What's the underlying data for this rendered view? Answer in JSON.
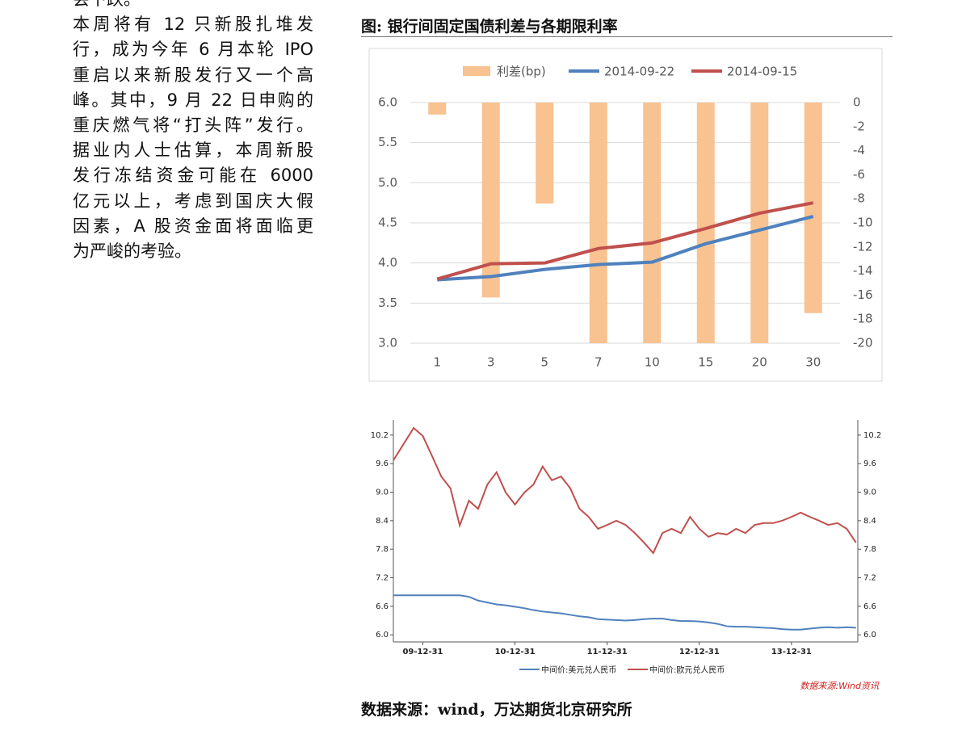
{
  "text": {
    "lines": [
      "会下跌。",
      "本周将有 12 只新股扎堆发",
      "行，成为今年 6 月本轮 IPO",
      "重启以来新股发行又一个高",
      "峰。其中，9 月 22 日申购的",
      "重庆燃气将“打头阵”发行。",
      "据业内人士估算，本周新股",
      "发行冻结资金可能在 6000",
      "亿元以上，考虑到国庆大假",
      "因素，A 股资金面将面临更",
      "为严峻的考验。"
    ]
  },
  "chart_data": [
    {
      "type": "bar-line",
      "title": "图: 银行间固定国债利差与各期限利率",
      "categories": [
        "1",
        "3",
        "5",
        "7",
        "10",
        "15",
        "20",
        "30"
      ],
      "series": [
        {
          "name": "利差(bp)",
          "color": "#f8c291",
          "axis": "y2",
          "kind": "bar",
          "values": [
            -1.0,
            -16.2,
            -8.4,
            -20,
            -20,
            -20,
            -20,
            -17.5
          ]
        },
        {
          "name": "2014-09-22",
          "color": "#4f81bd",
          "kind": "line",
          "values": [
            3.79,
            3.83,
            3.92,
            3.98,
            4.01,
            4.24,
            4.41,
            4.58
          ]
        },
        {
          "name": "2014-09-15",
          "color": "#c0504d",
          "kind": "line",
          "values": [
            3.8,
            3.99,
            4.0,
            4.18,
            4.25,
            4.43,
            4.62,
            4.75
          ]
        }
      ],
      "ylim": [
        3,
        6
      ],
      "yticks": [
        {
          "value": 3,
          "label": "3.0"
        },
        3.5,
        {
          "value": 4,
          "label": "4.0"
        },
        4.5,
        {
          "value": 5,
          "label": "5.0"
        },
        5.5,
        {
          "value": 6,
          "label": "6.0"
        }
      ],
      "y2lim": [
        -20,
        0
      ],
      "y2ticks": [
        -20,
        -18,
        -16,
        -14,
        -12,
        -10,
        -8,
        -6,
        -4,
        -2,
        0
      ],
      "grid": true,
      "legend": "top"
    },
    {
      "type": "line",
      "annotation": "数据来源:Wind资讯",
      "x": [
        2009.68,
        2009.9,
        2010.0,
        2010.1,
        2010.2,
        2010.3,
        2010.4,
        2010.5,
        2010.6,
        2010.7,
        2010.8,
        2010.9,
        2011.0,
        2011.1,
        2011.2,
        2011.3,
        2011.4,
        2011.5,
        2011.6,
        2011.7,
        2011.8,
        2011.9,
        2012.0,
        2012.1,
        2012.2,
        2012.3,
        2012.4,
        2012.5,
        2012.6,
        2012.7,
        2012.8,
        2012.9,
        2013.0,
        2013.1,
        2013.2,
        2013.3,
        2013.4,
        2013.5,
        2013.6,
        2013.7,
        2013.8,
        2013.9,
        2014.0,
        2014.1,
        2014.2,
        2014.3,
        2014.4,
        2014.5,
        2014.6,
        2014.7
      ],
      "series": [
        {
          "name": "中间价:美元兑人民币",
          "color": "#4f81bd",
          "values": [
            6.83,
            6.83,
            6.83,
            6.83,
            6.83,
            6.83,
            6.83,
            6.8,
            6.72,
            6.68,
            6.64,
            6.62,
            6.59,
            6.56,
            6.52,
            6.49,
            6.47,
            6.45,
            6.42,
            6.39,
            6.37,
            6.33,
            6.32,
            6.31,
            6.3,
            6.31,
            6.33,
            6.34,
            6.34,
            6.31,
            6.29,
            6.29,
            6.28,
            6.26,
            6.23,
            6.18,
            6.17,
            6.17,
            6.16,
            6.15,
            6.14,
            6.12,
            6.11,
            6.11,
            6.13,
            6.15,
            6.16,
            6.15,
            6.16,
            6.15
          ]
        },
        {
          "name": "中间价:欧元兑人民币",
          "color": "#c0504d",
          "values": [
            9.67,
            10.35,
            10.18,
            9.76,
            9.33,
            9.08,
            8.3,
            8.82,
            8.65,
            9.16,
            9.42,
            8.99,
            8.74,
            8.99,
            9.16,
            9.54,
            9.25,
            9.33,
            9.08,
            8.65,
            8.48,
            8.23,
            8.31,
            8.4,
            8.31,
            8.14,
            7.94,
            7.72,
            8.14,
            8.23,
            8.14,
            8.48,
            8.23,
            8.06,
            8.14,
            8.11,
            8.23,
            8.14,
            8.31,
            8.35,
            8.35,
            8.4,
            8.48,
            8.57,
            8.48,
            8.4,
            8.31,
            8.35,
            8.23,
            7.94
          ]
        }
      ],
      "xlim": [
        2009.68,
        2014.72
      ],
      "xticks": [
        {
          "value": 2010,
          "label": "09-12-31"
        },
        {
          "value": 2011,
          "label": "10-12-31"
        },
        {
          "value": 2012,
          "label": "11-12-31"
        },
        {
          "value": 2013,
          "label": "12-12-31"
        },
        {
          "value": 2014,
          "label": "13-12-31"
        }
      ],
      "ylim": [
        5.85,
        10.52
      ],
      "yticks": [
        {
          "value": 6,
          "label": "6.0"
        },
        6.6,
        7.2,
        7.8,
        8.4,
        {
          "value": 9,
          "label": "9.0"
        },
        9.6,
        10.2
      ],
      "grid": false,
      "legend": "bottom"
    }
  ],
  "source": "数据来源：wind，万达期货北京研究所"
}
